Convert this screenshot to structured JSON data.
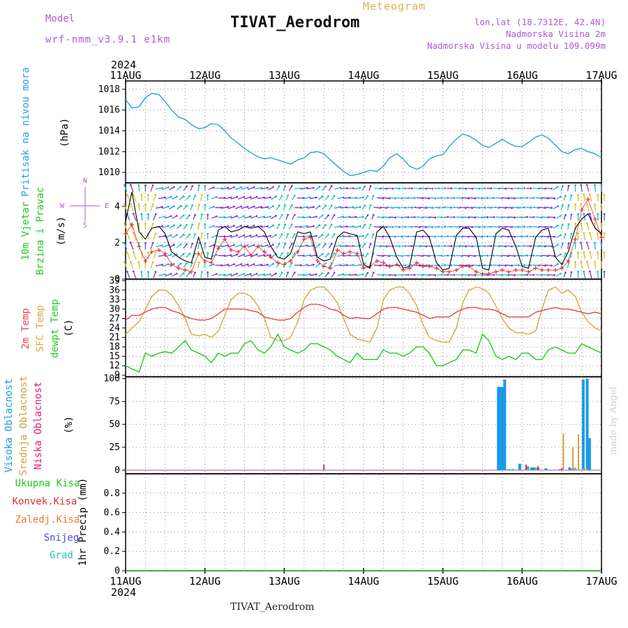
{
  "header": {
    "model_label": "Model",
    "model_name": "wrf-nmm_v3.9.1 e1km",
    "title": "TIVAT_Aerodrom",
    "meteogram_label": "Meteogram",
    "lonlat": "lon,lat (18.7312E, 42.4N)",
    "altitude": "Nadmorska Visina 2m",
    "model_altitude": "Nadmorska Visina u modelu 109.099m"
  },
  "footer_title": "TIVAT_Aerodrom",
  "made_by": "made by Angel",
  "colors": {
    "pressure": "#2aa0e0",
    "wind_speed": "#000000",
    "gust": "#e03030",
    "temp2m": "#e04848",
    "sfc_temp": "#d8a840",
    "dewpoint": "#22c822",
    "high_cloud": "#1a9ae8",
    "mid_cloud": "#d0a040",
    "low_cloud": "#e0207a",
    "grid": "#888888"
  },
  "chart_data": [
    {
      "type": "line",
      "panel": "pressure",
      "ylabel_left": "Pritisak na nivou mora",
      "unit": "(hPa)",
      "x_top_year": "2024",
      "x_ticks": [
        "11AUG",
        "12AUG",
        "13AUG",
        "14AUG",
        "15AUG",
        "16AUG",
        "17AUG"
      ],
      "ylim": [
        1009,
        1018.8
      ],
      "yticks": [
        1010,
        1012,
        1014,
        1016,
        1018
      ],
      "x": [
        0,
        0.08,
        0.17,
        0.25,
        0.33,
        0.42,
        0.5,
        0.58,
        0.67,
        0.75,
        0.83,
        0.92,
        1.0,
        1.08,
        1.17,
        1.25,
        1.33,
        1.42,
        1.5,
        1.58,
        1.67,
        1.75,
        1.83,
        1.92,
        2.0,
        2.08,
        2.17,
        2.25,
        2.33,
        2.42,
        2.5,
        2.58,
        2.67,
        2.75,
        2.83,
        2.92,
        3.0,
        3.08,
        3.17,
        3.25,
        3.33,
        3.42,
        3.5,
        3.58,
        3.67,
        3.75,
        3.83,
        3.92,
        4.0,
        4.08,
        4.17,
        4.25,
        4.33,
        4.42,
        4.5,
        4.58,
        4.67,
        4.75,
        4.83,
        4.92,
        5.0,
        5.08,
        5.17,
        5.25,
        5.33,
        5.42,
        5.5,
        5.58,
        5.67,
        5.75,
        5.83,
        5.92,
        6.0
      ],
      "series": [
        {
          "name": "Pritisak na nivou mora",
          "values": [
            1017,
            1016.2,
            1016.3,
            1017.2,
            1017.6,
            1017.5,
            1016.8,
            1016,
            1015.3,
            1015.1,
            1014.6,
            1014.2,
            1014.3,
            1014.7,
            1014.6,
            1014,
            1013.3,
            1012.8,
            1012.3,
            1011.9,
            1011.5,
            1011.3,
            1011.4,
            1011.2,
            1011,
            1010.8,
            1011.2,
            1011.4,
            1011.9,
            1012,
            1011.8,
            1011.2,
            1010.6,
            1010.1,
            1009.7,
            1009.8,
            1010,
            1010.2,
            1010.1,
            1010.6,
            1011.4,
            1011.8,
            1011.3,
            1010.6,
            1010.3,
            1010.6,
            1011.3,
            1011.6,
            1011.7,
            1012.5,
            1013.2,
            1013.7,
            1013.5,
            1013.1,
            1012.6,
            1012.4,
            1012.8,
            1013.2,
            1012.8,
            1012.5,
            1012.5,
            1012.9,
            1013.4,
            1013.6,
            1013.3,
            1012.6,
            1012,
            1011.8,
            1012.2,
            1012.3,
            1012,
            1011.8,
            1011.4
          ]
        }
      ]
    },
    {
      "type": "line",
      "panel": "wind",
      "ylabel_left": [
        "10m Vjetar",
        "Brzina i Pravac"
      ],
      "unit": "(m/s)",
      "compass": [
        "N",
        "E",
        "S",
        "W"
      ],
      "ylim": [
        0,
        5.3
      ],
      "yticks": [
        0,
        2,
        4
      ],
      "x": [
        0,
        0.08,
        0.17,
        0.25,
        0.33,
        0.42,
        0.5,
        0.58,
        0.67,
        0.75,
        0.83,
        0.92,
        1.0,
        1.08,
        1.17,
        1.25,
        1.33,
        1.42,
        1.5,
        1.58,
        1.67,
        1.75,
        1.83,
        1.92,
        2.0,
        2.08,
        2.17,
        2.25,
        2.33,
        2.42,
        2.5,
        2.58,
        2.67,
        2.75,
        2.83,
        2.92,
        3.0,
        3.08,
        3.17,
        3.25,
        3.33,
        3.42,
        3.5,
        3.58,
        3.67,
        3.75,
        3.83,
        3.92,
        4.0,
        4.08,
        4.17,
        4.25,
        4.33,
        4.42,
        4.5,
        4.58,
        4.67,
        4.75,
        4.83,
        4.92,
        5.0,
        5.08,
        5.17,
        5.25,
        5.33,
        5.42,
        5.5,
        5.58,
        5.67,
        5.75,
        5.83,
        5.92,
        6.0
      ],
      "series": [
        {
          "name": "speed",
          "values": [
            3.2,
            4.8,
            2.6,
            2.2,
            2.8,
            2.9,
            2.5,
            1.5,
            1.2,
            1.0,
            0.9,
            2.3,
            1.2,
            1.1,
            2.7,
            2.9,
            2.6,
            2.7,
            2.9,
            2.8,
            2.9,
            2.6,
            1.8,
            1.2,
            1.1,
            1.4,
            2.6,
            2.5,
            2.6,
            1.2,
            1.0,
            1.1,
            2.3,
            2.6,
            2.5,
            2.4,
            0.8,
            0.6,
            2.6,
            2.9,
            2.3,
            1.2,
            0.6,
            0.7,
            2.6,
            2.7,
            2.3,
            0.9,
            0.5,
            0.6,
            2.4,
            2.8,
            2.8,
            2.3,
            0.6,
            0.5,
            2.5,
            2.8,
            2.7,
            1.8,
            0.7,
            0.6,
            2.3,
            2.7,
            2.8,
            1.2,
            0.8,
            1.5,
            2.8,
            3.3,
            3.6,
            2.8,
            2.5
          ]
        },
        {
          "name": "gust",
          "values": [
            2.5,
            3.0,
            1.8,
            1.0,
            1.5,
            1.6,
            1.4,
            0.8,
            0.6,
            0.5,
            0.4,
            1.4,
            1.0,
            0.9,
            1.7,
            2.2,
            1.6,
            1.5,
            1.8,
            1.3,
            1.8,
            1.5,
            1.2,
            0.9,
            0.8,
            1.0,
            1.5,
            2.2,
            2.3,
            1.0,
            0.7,
            0.6,
            1.6,
            1.4,
            1.5,
            1.4,
            0.6,
            0.7,
            1.0,
            0.9,
            0.7,
            0.8,
            0.5,
            0.6,
            0.9,
            0.7,
            0.7,
            0.6,
            0.4,
            0.4,
            0.5,
            0.7,
            0.7,
            0.4,
            0.3,
            0.3,
            0.4,
            0.5,
            0.4,
            0.5,
            0.5,
            0.4,
            0.6,
            0.5,
            0.5,
            0.5,
            0.6,
            1.0,
            2.2,
            3.8,
            4.4,
            3.3,
            2.3
          ]
        }
      ],
      "wind_direction_deg": [
        160,
        160,
        175,
        180,
        200,
        260,
        250,
        240,
        230,
        220,
        200,
        190,
        180,
        250,
        270,
        260,
        250,
        250,
        255,
        250,
        260,
        260,
        240,
        210,
        200,
        210,
        270,
        260,
        260,
        230,
        220,
        210,
        260,
        265,
        265,
        260,
        215,
        200,
        275,
        275,
        275,
        275,
        270,
        270,
        275,
        275,
        275,
        270,
        265,
        270,
        275,
        275,
        275,
        275,
        270,
        270,
        275,
        275,
        275,
        270,
        265,
        270,
        275,
        275,
        275,
        240,
        200,
        190,
        180,
        170,
        165,
        175,
        180
      ]
    },
    {
      "type": "line",
      "panel": "temperature",
      "ylabel_left": [
        "2m Temp",
        "SFC Temp",
        "dewpt Temp"
      ],
      "unit": "(C)",
      "ylim": [
        8.5,
        39.5
      ],
      "yticks": [
        9,
        12,
        15,
        18,
        21,
        24,
        27,
        30,
        33,
        36,
        39
      ],
      "x": [
        0,
        0.08,
        0.17,
        0.25,
        0.33,
        0.42,
        0.5,
        0.58,
        0.67,
        0.75,
        0.83,
        0.92,
        1.0,
        1.08,
        1.17,
        1.25,
        1.33,
        1.42,
        1.5,
        1.58,
        1.67,
        1.75,
        1.83,
        1.92,
        2.0,
        2.08,
        2.17,
        2.25,
        2.33,
        2.42,
        2.5,
        2.58,
        2.67,
        2.75,
        2.83,
        2.92,
        3.0,
        3.08,
        3.17,
        3.25,
        3.33,
        3.42,
        3.5,
        3.58,
        3.67,
        3.75,
        3.83,
        3.92,
        4.0,
        4.08,
        4.17,
        4.25,
        4.33,
        4.42,
        4.5,
        4.58,
        4.67,
        4.75,
        4.83,
        4.92,
        5.0,
        5.08,
        5.17,
        5.25,
        5.33,
        5.42,
        5.5,
        5.58,
        5.67,
        5.75,
        5.83,
        5.92,
        6.0
      ],
      "series": [
        {
          "name": "2m Temp",
          "values": [
            26.5,
            28,
            28,
            29,
            30,
            30.5,
            30.5,
            29.5,
            28.8,
            27.7,
            27,
            26.5,
            26.5,
            27,
            28.5,
            30,
            30,
            30,
            30,
            29.5,
            29,
            27.5,
            27,
            26.5,
            26.5,
            27,
            29,
            30.5,
            31.5,
            31.5,
            31,
            30,
            29.5,
            28,
            27,
            27.3,
            27,
            27,
            28.5,
            30,
            30.5,
            30.5,
            30,
            29.5,
            29,
            28,
            27,
            27.5,
            27.5,
            27.5,
            29,
            30,
            30.5,
            30.5,
            30,
            30,
            29.5,
            28.5,
            27.5,
            27.5,
            27.5,
            27.5,
            29,
            29.5,
            30,
            30.5,
            30,
            30,
            29.5,
            29,
            28.5,
            29,
            28.5
          ]
        },
        {
          "name": "SFC Temp",
          "values": [
            22,
            24,
            26,
            30,
            34,
            36,
            36,
            34.5,
            31,
            27,
            22,
            21.5,
            22,
            21,
            23,
            28,
            33,
            35,
            35,
            34,
            31,
            27,
            21,
            20,
            20,
            21,
            26,
            33,
            36,
            37,
            37,
            35,
            32,
            27,
            22,
            20.5,
            20,
            19.5,
            24,
            33,
            36,
            37,
            37,
            35,
            31,
            25,
            21,
            20,
            19.5,
            19.5,
            24,
            32,
            36,
            37,
            36.5,
            35,
            31,
            27,
            24,
            22.5,
            22.5,
            22,
            23,
            30,
            36,
            37,
            35,
            36,
            34,
            29,
            26,
            24,
            23
          ]
        },
        {
          "name": "dewpt Temp",
          "values": [
            12,
            11,
            10,
            16,
            15,
            16,
            16.5,
            16,
            18,
            20,
            17,
            16,
            15,
            13,
            16,
            15,
            16,
            16,
            19,
            20,
            17,
            16,
            18,
            22,
            18,
            17,
            16,
            17,
            19,
            19,
            18,
            17,
            15,
            14,
            13,
            16,
            14,
            14,
            14,
            17,
            16,
            16,
            15,
            16,
            18,
            18,
            16,
            12,
            12,
            13,
            14,
            17,
            17,
            16,
            22,
            20,
            15,
            14,
            15,
            14,
            16,
            16,
            14,
            14,
            17,
            18,
            17,
            16,
            16,
            19,
            18,
            17,
            16
          ]
        }
      ]
    },
    {
      "type": "bar",
      "panel": "clouds",
      "ylabel_left": [
        "Visoka Oblacnost",
        "Srednja Oblacnost",
        "Niska Oblacnost"
      ],
      "unit": "(%)",
      "ylim": [
        -4,
        102
      ],
      "yticks": [
        0,
        25,
        50,
        75,
        100
      ],
      "series": [
        {
          "name": "Visoka Oblacnost",
          "x": [
            4.7,
            4.72,
            4.75,
            4.78,
            4.83,
            4.88,
            4.97,
            5.07,
            5.12,
            5.15,
            5.2,
            5.3,
            5.48,
            5.6,
            5.64,
            5.67,
            5.77,
            5.82,
            5.85
          ],
          "values": [
            91,
            91,
            91,
            99,
            1,
            1,
            7,
            4,
            3,
            3,
            3,
            2,
            1,
            3,
            2,
            1,
            99,
            100,
            35
          ]
        },
        {
          "name": "Srednja Oblacnost",
          "x": [
            5.07,
            5.17,
            5.2,
            5.52,
            5.64,
            5.67,
            5.71,
            5.77,
            5.82
          ],
          "values": [
            2,
            3,
            5,
            40,
            25,
            3,
            39,
            2,
            2
          ]
        },
        {
          "name": "Niska Oblacnost",
          "x": [
            2.5,
            5.05,
            5.2,
            5.5
          ],
          "values": [
            6,
            6,
            3,
            2
          ]
        }
      ]
    },
    {
      "type": "line",
      "panel": "precipitation",
      "ylabel_left": [
        "Ukupna Kisa",
        "Konvek.Kisa",
        "Zaledj.Kisa",
        "Snijeg",
        "Grad"
      ],
      "unit": "1hr Precip (mm)",
      "ylim": [
        0,
        1.0
      ],
      "yticks": [
        0,
        0.2,
        0.4,
        0.6,
        0.8
      ],
      "x_bottom_year": "2024",
      "series": [
        {
          "name": "Ukupna Kisa",
          "values": [
            0,
            0
          ]
        },
        {
          "name": "Konvek.Kisa",
          "values": [
            0,
            0
          ]
        },
        {
          "name": "Zaledj.Kisa",
          "values": [
            0,
            0
          ]
        },
        {
          "name": "Snijeg",
          "values": [
            0,
            0
          ]
        },
        {
          "name": "Grad",
          "values": [
            0,
            0
          ]
        }
      ]
    }
  ]
}
